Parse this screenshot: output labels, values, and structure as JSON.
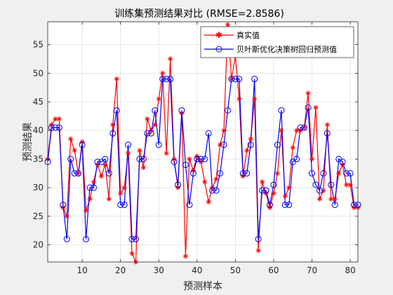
{
  "chart_data": {
    "type": "line",
    "title": "训练集预测结果对比 (RMSE=2.8586)",
    "xlabel": "预测样本",
    "ylabel": "预测结果",
    "xlim": [
      1,
      82
    ],
    "ylim": [
      17,
      59
    ],
    "xticks": [
      10,
      20,
      30,
      40,
      50,
      60,
      70,
      80
    ],
    "yticks": [
      20,
      25,
      30,
      35,
      40,
      45,
      50,
      55
    ],
    "grid": true,
    "legend_position": "top-right",
    "x": [
      1,
      2,
      3,
      4,
      5,
      6,
      7,
      8,
      9,
      10,
      11,
      12,
      13,
      14,
      15,
      16,
      17,
      18,
      19,
      20,
      21,
      22,
      23,
      24,
      25,
      26,
      27,
      28,
      29,
      30,
      31,
      32,
      33,
      34,
      35,
      36,
      37,
      38,
      39,
      40,
      41,
      42,
      43,
      44,
      45,
      46,
      47,
      48,
      49,
      50,
      51,
      52,
      53,
      54,
      55,
      56,
      57,
      58,
      59,
      60,
      61,
      62,
      63,
      64,
      65,
      66,
      67,
      68,
      69,
      70,
      71,
      72,
      73,
      74,
      75,
      76,
      77,
      78,
      79,
      80,
      81,
      82
    ],
    "series": [
      {
        "name": "真实值",
        "color": "#ff0000",
        "marker": "asterisk",
        "values": [
          35,
          41,
          42,
          42,
          26.5,
          25,
          38.5,
          36.5,
          32.5,
          38,
          26,
          28,
          31,
          34,
          32,
          34,
          28,
          41,
          49,
          29,
          30,
          36,
          18.5,
          17,
          36.5,
          33.5,
          42,
          40,
          41,
          45.5,
          50,
          36,
          52.5,
          35,
          30,
          43,
          18,
          35,
          33,
          35.5,
          34.5,
          31,
          27.5,
          30,
          31.5,
          37.5,
          40,
          58.5,
          49,
          53,
          45.5,
          32,
          36.5,
          38.5,
          45.5,
          19,
          31,
          29,
          26.5,
          29,
          32.5,
          40,
          28.5,
          30,
          37,
          40,
          40,
          40.5,
          46.5,
          35,
          44,
          28,
          29.5,
          41,
          28,
          28,
          32.5,
          34,
          30.5,
          30.5,
          26.5,
          26.5
        ]
      },
      {
        "name": "贝叶斯优化决策树回归预测值",
        "color": "#0000ff",
        "marker": "circle",
        "values": [
          34.5,
          40.5,
          40.5,
          40.5,
          27,
          21,
          35,
          32.5,
          32.5,
          37.5,
          21,
          30,
          30,
          34.5,
          34.5,
          35,
          32.5,
          39.5,
          43.5,
          27,
          27,
          37.5,
          21,
          21,
          35,
          35,
          39.5,
          39.5,
          43.5,
          37.5,
          49,
          49,
          49,
          34.5,
          30.5,
          43.5,
          34,
          27,
          32.5,
          35,
          35,
          35,
          39.5,
          29.5,
          29.5,
          32.5,
          37.5,
          43.5,
          49,
          49,
          49,
          32.5,
          32.5,
          37.5,
          49,
          21,
          29.5,
          29.5,
          27,
          30.5,
          37.5,
          43.5,
          27,
          27,
          34.5,
          35,
          40.5,
          40.5,
          44,
          32.5,
          30.5,
          29.5,
          32.5,
          39.5,
          30.5,
          27,
          35,
          34.5,
          32.5,
          32.5,
          27,
          27
        ]
      }
    ]
  }
}
